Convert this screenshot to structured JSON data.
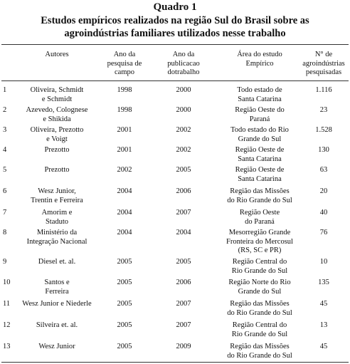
{
  "header": {
    "title": "Quadro 1",
    "subtitle": "Estudos empíricos realizados na região Sul do Brasil sobre as\nagroindústrias familiares utilizados nesse trabalho"
  },
  "table": {
    "columns": [
      "",
      "Autores",
      "Ano da\npesquisa de\ncampo",
      "Ano da\npublicacao\ndotrabalho",
      "Área do estudo\nEmpírico",
      "N° de\nagroindústrias\npesquisadas"
    ],
    "rows": [
      [
        "1",
        "Oliveira, Schmidt\ne Schmidt",
        "1998",
        "2000",
        "Todo estado de\nSanta Catarina",
        "1.116"
      ],
      [
        "2",
        "Azevedo, Colognese\ne Shikida",
        "1998",
        "2000",
        "Região Oeste do\nParaná",
        "23"
      ],
      [
        "3",
        "Oliveira, Prezotto\ne Voigt",
        "2001",
        "2002",
        "Todo estado do Rio\nGrande do Sul",
        "1.528"
      ],
      [
        "4",
        "Prezotto",
        "2001",
        "2002",
        "Região Oeste de\nSanta Catarina",
        "130"
      ],
      [
        "5",
        "Prezotto",
        "2002",
        "2005",
        "Região Oeste de\nSanta Catarina",
        "63"
      ],
      [
        "6",
        "Wesz Junior,\nTrentin e Ferreira",
        "2004",
        "2006",
        "Região das Missões\ndo Rio Grande do Sul",
        "20"
      ],
      [
        "7",
        "Amorim e\nStaduto",
        "2004",
        "2007",
        "Região Oeste\ndo Paraná",
        "40"
      ],
      [
        "8",
        "Ministério da\nIntegração Nacional",
        "2004",
        "2004",
        "Mesorregião Grande\nFronteira do Mercosul\n(RS, SC e PR)",
        "76"
      ],
      [
        "9",
        "Diesel et. al.",
        "2005",
        "2005",
        "Região Central do\nRio Grande do Sul",
        "10"
      ],
      [
        "10",
        "Santos e\nFerreira",
        "2005",
        "2006",
        "Região Norte do Rio\nGrande do Sul",
        "135"
      ],
      [
        "11",
        "Wesz Junior e Niederle",
        "2005",
        "2007",
        "Região das Missões\ndo Rio Grande do Sul",
        "45"
      ],
      [
        "12",
        "Silveira et. al.",
        "2005",
        "2007",
        "Região Central do\nRio Grande do Sul",
        "13"
      ],
      [
        "13",
        "Wesz Junior",
        "2005",
        "2009",
        "Região das Missões\ndo Rio Grande do Sul",
        "45"
      ]
    ]
  }
}
